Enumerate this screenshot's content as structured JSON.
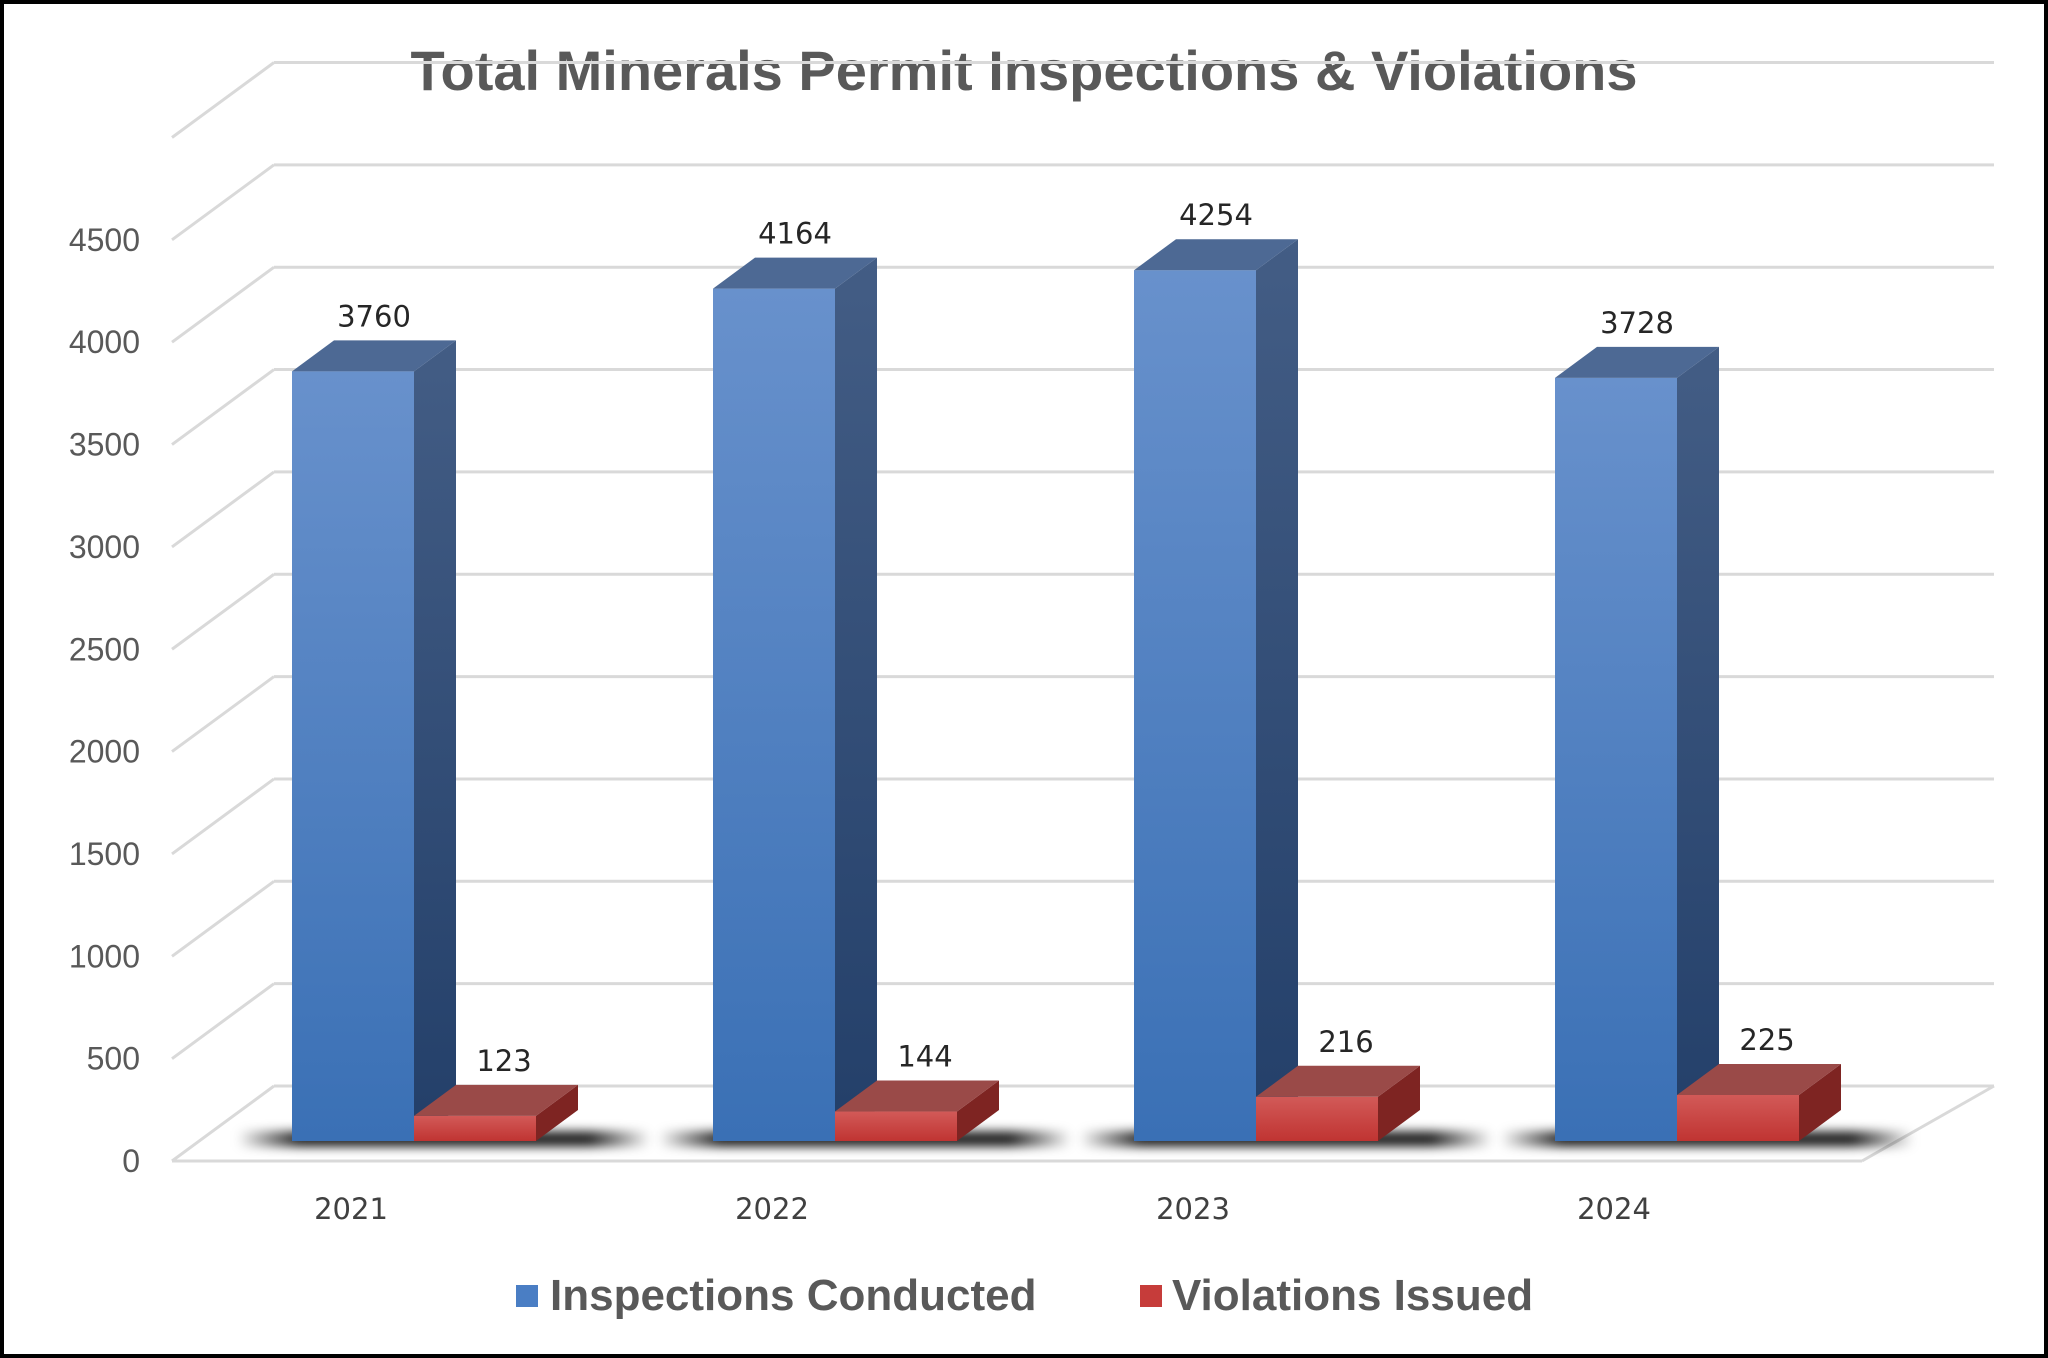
{
  "chart_data": {
    "type": "bar",
    "title": "Total Minerals Permit Inspections & Violations",
    "xlabel": "",
    "ylabel": "",
    "categories": [
      "2021",
      "2022",
      "2023",
      "2024"
    ],
    "series": [
      {
        "name": "Inspections Conducted",
        "values": [
          3760,
          4164,
          4254,
          3728
        ],
        "color": "#4a7ec4"
      },
      {
        "name": "Violations Issued",
        "values": [
          123,
          144,
          216,
          225
        ],
        "color": "#c63c3a"
      }
    ],
    "yticks": [
      "0",
      "500",
      "1000",
      "1500",
      "2000",
      "2500",
      "3000",
      "3500",
      "4000",
      "4500"
    ],
    "ylim": [
      0,
      5000
    ],
    "grid": true,
    "legend": "bottom-center",
    "bar_style": "3d"
  }
}
